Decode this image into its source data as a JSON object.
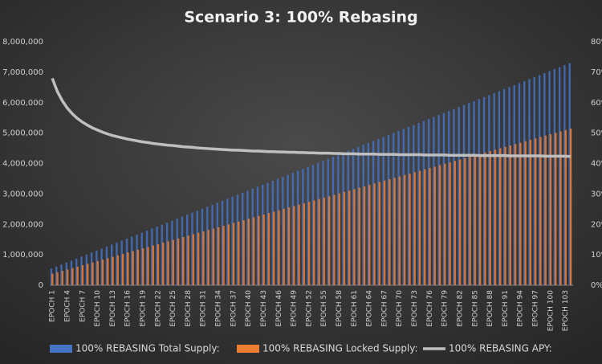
{
  "chart_data": {
    "type": "bar-line",
    "title": "Scenario 3: 100% Rebasing",
    "categories": [
      "EPOCH 1",
      null,
      null,
      "EPOCH 4",
      null,
      null,
      "EPOCH 7",
      null,
      null,
      "EPOCH 10",
      null,
      null,
      "EPOCH 13",
      null,
      null,
      "EPOCH 16",
      null,
      null,
      "EPOCH 19",
      null,
      null,
      "EPOCH 22",
      null,
      null,
      "EPOCH 25",
      null,
      null,
      "EPOCH 28",
      null,
      null,
      "EPOCH 31",
      null,
      null,
      "EPOCH 34",
      null,
      null,
      "EPOCH 37",
      null,
      null,
      "EPOCH 40",
      null,
      null,
      "EPOCH 43",
      null,
      null,
      "EPOCH 46",
      null,
      null,
      "EPOCH 49",
      null,
      null,
      "EPOCH 52",
      null,
      null,
      "EPOCH 55",
      null,
      null,
      "EPOCH 58",
      null,
      null,
      "EPOCH 61",
      null,
      null,
      "EPOCH 64",
      null,
      null,
      "EPOCH 67",
      null,
      null,
      "EPOCH 70",
      null,
      null,
      "EPOCH 73",
      null,
      null,
      "EPOCH 76",
      null,
      null,
      "EPOCH 79",
      null,
      null,
      "EPOCH 82",
      null,
      null,
      "EPOCH 85",
      null,
      null,
      "EPOCH 88",
      null,
      null,
      "EPOCH 91",
      null,
      null,
      "EPOCH 94",
      null,
      null,
      "EPOCH 97",
      null,
      null,
      "EPOCH 100",
      null,
      null,
      "EPOCH 103",
      null
    ],
    "series": [
      {
        "name": "100% REBASING Total Supply:",
        "color": "#4472c4",
        "kind": "bar",
        "values": [
          550000,
          615500,
          681000,
          746500,
          812000,
          877500,
          943000,
          1008500,
          1074000,
          1139500,
          1205000,
          1270500,
          1336000,
          1401500,
          1467000,
          1532500,
          1598000,
          1663500,
          1729000,
          1794500,
          1860000,
          1925500,
          1991000,
          2056500,
          2122000,
          2187500,
          2253000,
          2318500,
          2384000,
          2449500,
          2515000,
          2580500,
          2646000,
          2711500,
          2777000,
          2842500,
          2908000,
          2973500,
          3039000,
          3104500,
          3170000,
          3235500,
          3301000,
          3366500,
          3432000,
          3497500,
          3563000,
          3628500,
          3694000,
          3759500,
          3825000,
          3890500,
          3956000,
          4021500,
          4087000,
          4152500,
          4218000,
          4283500,
          4349000,
          4414500,
          4480000,
          4545500,
          4611000,
          4676500,
          4742000,
          4807500,
          4873000,
          4938500,
          5004000,
          5069500,
          5135000,
          5200500,
          5266000,
          5331500,
          5397000,
          5462500,
          5528000,
          5593500,
          5659000,
          5724500,
          5790000,
          5855500,
          5921000,
          5986500,
          6052000,
          6117500,
          6183000,
          6248500,
          6314000,
          6379500,
          6445000,
          6510500,
          6576000,
          6641500,
          6707000,
          6772500,
          6838000,
          6903500,
          6969000,
          7034500,
          7100000,
          7165500,
          7231000,
          7296500
        ]
      },
      {
        "name": "100% REBASING Locked Supply:",
        "color": "#ed7d31",
        "kind": "bar",
        "values": [
          380000,
          426300,
          472600,
          518900,
          565200,
          611500,
          657800,
          704100,
          750400,
          796700,
          843000,
          889300,
          935600,
          981900,
          1028200,
          1074500,
          1120800,
          1167100,
          1213400,
          1259700,
          1306000,
          1352300,
          1398600,
          1444900,
          1491200,
          1537500,
          1583800,
          1630100,
          1676400,
          1722700,
          1769000,
          1815300,
          1861600,
          1907900,
          1954200,
          2000500,
          2046800,
          2093100,
          2139400,
          2185700,
          2232000,
          2278300,
          2324600,
          2370900,
          2417200,
          2463500,
          2509800,
          2556100,
          2602400,
          2648700,
          2695000,
          2741300,
          2787600,
          2833900,
          2880200,
          2926500,
          2972800,
          3019100,
          3065400,
          3111700,
          3158000,
          3204300,
          3250600,
          3296900,
          3343200,
          3389500,
          3435800,
          3482100,
          3528400,
          3574700,
          3621000,
          3667300,
          3713600,
          3759900,
          3806200,
          3852500,
          3898800,
          3945100,
          3991400,
          4037700,
          4084000,
          4130300,
          4176600,
          4222900,
          4269200,
          4315500,
          4361800,
          4408100,
          4454400,
          4500700,
          4547000,
          4593300,
          4639600,
          4685900,
          4732200,
          4778500,
          4824800,
          4871100,
          4917400,
          4963700,
          5010000,
          5056300,
          5102600,
          5148900
        ]
      },
      {
        "name": "100% REBASING APY:",
        "color": "#bfbfbf",
        "kind": "line",
        "axis": "y2",
        "values": [
          68.0,
          63.7,
          60.6,
          58.2,
          56.3,
          54.8,
          53.6,
          52.6,
          51.7,
          51.0,
          50.3,
          49.7,
          49.2,
          48.8,
          48.4,
          48.0,
          47.7,
          47.4,
          47.1,
          46.9,
          46.6,
          46.4,
          46.2,
          46.0,
          45.9,
          45.7,
          45.5,
          45.4,
          45.3,
          45.1,
          45.0,
          44.9,
          44.8,
          44.7,
          44.6,
          44.5,
          44.4,
          44.4,
          44.3,
          44.2,
          44.1,
          44.1,
          44.0,
          43.9,
          43.9,
          43.8,
          43.8,
          43.7,
          43.7,
          43.6,
          43.6,
          43.5,
          43.5,
          43.4,
          43.4,
          43.4,
          43.3,
          43.3,
          43.2,
          43.2,
          43.2,
          43.1,
          43.1,
          43.1,
          43.1,
          43.0,
          43.0,
          43.0,
          43.0,
          42.9,
          42.9,
          42.9,
          42.9,
          42.9,
          42.8,
          42.8,
          42.8,
          42.8,
          42.8,
          42.7,
          42.7,
          42.7,
          42.7,
          42.7,
          42.7,
          42.6,
          42.6,
          42.6,
          42.6,
          42.6,
          42.6,
          42.5,
          42.5,
          42.5,
          42.5,
          42.5,
          42.5,
          42.5,
          42.4,
          42.4,
          42.4,
          42.4,
          42.4,
          42.3
        ]
      }
    ],
    "ylim": [
      0,
      8000000
    ],
    "yticks": [
      0,
      {
        "value": 1000000,
        "label": "1,000,000"
      },
      {
        "value": 2000000,
        "label": "2,000,000"
      },
      {
        "value": 3000000,
        "label": "3,000,000"
      },
      {
        "value": 4000000,
        "label": "4,000,000"
      },
      {
        "value": 5000000,
        "label": "5,000,000"
      },
      {
        "value": 6000000,
        "label": "6,000,000"
      },
      {
        "value": 7000000,
        "label": "7,000,000"
      },
      {
        "value": 8000000,
        "label": "8,000,000"
      }
    ],
    "y2lim": [
      0,
      80
    ],
    "y2ticks": [
      {
        "value": 0,
        "label": "0%"
      },
      {
        "value": 10,
        "label": "10%"
      },
      {
        "value": 20,
        "label": "20%"
      },
      {
        "value": 30,
        "label": "30%"
      },
      {
        "value": 40,
        "label": "40%"
      },
      {
        "value": 50,
        "label": "50%"
      },
      {
        "value": 60,
        "label": "60%"
      },
      {
        "value": 70,
        "label": "70%"
      },
      {
        "value": 80,
        "label": "80%"
      }
    ],
    "grid": false,
    "legend": "bottom"
  }
}
